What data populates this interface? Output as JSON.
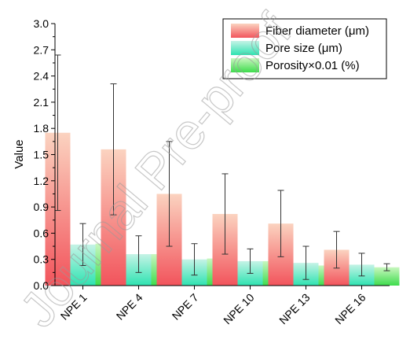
{
  "chart_data": {
    "type": "bar",
    "title": "",
    "xlabel": "",
    "ylabel": "Value",
    "ylim": [
      0,
      3.0
    ],
    "yticks": [
      "0.0",
      "0.3",
      "0.6",
      "0.9",
      "1.2",
      "1.5",
      "1.8",
      "2.1",
      "2.4",
      "2.7",
      "3.0"
    ],
    "categories": [
      "NPE 1",
      "NPE 4",
      "NPE 7",
      "NPE 10",
      "NPE 13",
      "NPE 16"
    ],
    "series": [
      {
        "name": "Fiber diameter (μm)",
        "color_top": "#fbd3c0",
        "color_bottom": "#f2545c",
        "values": [
          1.75,
          1.56,
          1.05,
          0.82,
          0.71,
          0.41
        ],
        "errors": [
          0.89,
          0.75,
          0.6,
          0.46,
          0.38,
          0.21
        ]
      },
      {
        "name": "Pore size (μm)",
        "color_top": "#c5f3e6",
        "color_bottom": "#2ee3b1",
        "values": [
          0.47,
          0.36,
          0.3,
          0.28,
          0.26,
          0.24
        ],
        "errors": [
          0.24,
          0.21,
          0.18,
          0.14,
          0.19,
          0.13
        ]
      },
      {
        "name": "Porosity×0.01 (%)",
        "color_top": "#c8f7bf",
        "color_bottom": "#3edc4d",
        "values": [
          0.48,
          0.36,
          0.31,
          0.28,
          0.23,
          0.21
        ],
        "errors": [
          0.04,
          0.04,
          0.04,
          0.03,
          0.03,
          0.04
        ]
      }
    ],
    "legend_position": "top-right",
    "grid": false
  },
  "watermark": "Journal Pre-proof"
}
